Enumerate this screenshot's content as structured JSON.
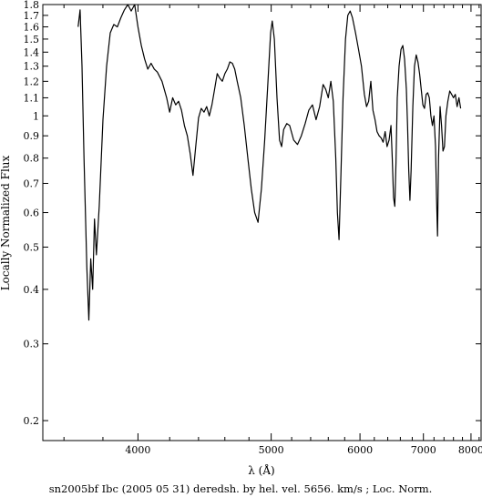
{
  "chart_data": {
    "type": "line",
    "caption": "sn2005bf Ibc (2005 05 31) deredsh. by hel. vel.  5656. km/s ;  Loc. Norm.",
    "xlabel": "λ (Å)",
    "ylabel": "Locally Normalized Flux",
    "x_scale": "reciprocal",
    "y_scale": "log",
    "xlim": [
      3500,
      8250
    ],
    "ylim": [
      0.18,
      1.8
    ],
    "x_ticks": [
      4000,
      5000,
      6000,
      7000,
      8000
    ],
    "x_tick_labels": [
      "4000",
      "5000",
      "6000",
      "7000",
      "8000"
    ],
    "y_ticks": [
      0.2,
      0.3,
      0.4,
      0.5,
      0.6,
      0.7,
      0.8,
      0.9,
      1,
      1.1,
      1.2,
      1.3,
      1.4,
      1.5,
      1.6,
      1.7,
      1.8
    ],
    "y_tick_labels": [
      "0.2",
      "0.3",
      "0.4",
      "0.5",
      "0.6",
      "0.7",
      "0.8",
      "0.9",
      "1",
      "1.1",
      "1.2",
      "1.3",
      "1.4",
      "1.5",
      "1.6",
      "1.7",
      "1.8"
    ],
    "grid": false,
    "series": [
      {
        "color": "#000000",
        "points": [
          [
            3670,
            1.6
          ],
          [
            3680,
            1.75
          ],
          [
            3690,
            1.3
          ],
          [
            3700,
            0.8
          ],
          [
            3715,
            0.45
          ],
          [
            3725,
            0.34
          ],
          [
            3735,
            0.47
          ],
          [
            3745,
            0.4
          ],
          [
            3755,
            0.58
          ],
          [
            3765,
            0.48
          ],
          [
            3780,
            0.62
          ],
          [
            3800,
            0.98
          ],
          [
            3820,
            1.3
          ],
          [
            3840,
            1.55
          ],
          [
            3860,
            1.62
          ],
          [
            3880,
            1.6
          ],
          [
            3900,
            1.68
          ],
          [
            3920,
            1.75
          ],
          [
            3940,
            1.8
          ],
          [
            3960,
            1.74
          ],
          [
            3980,
            1.8
          ],
          [
            4000,
            1.6
          ],
          [
            4020,
            1.45
          ],
          [
            4040,
            1.35
          ],
          [
            4060,
            1.28
          ],
          [
            4080,
            1.32
          ],
          [
            4100,
            1.28
          ],
          [
            4120,
            1.26
          ],
          [
            4150,
            1.2
          ],
          [
            4180,
            1.1
          ],
          [
            4200,
            1.02
          ],
          [
            4220,
            1.1
          ],
          [
            4240,
            1.06
          ],
          [
            4260,
            1.08
          ],
          [
            4280,
            1.03
          ],
          [
            4300,
            0.95
          ],
          [
            4320,
            0.9
          ],
          [
            4340,
            0.82
          ],
          [
            4360,
            0.73
          ],
          [
            4380,
            0.85
          ],
          [
            4400,
            0.99
          ],
          [
            4420,
            1.04
          ],
          [
            4440,
            1.02
          ],
          [
            4460,
            1.05
          ],
          [
            4480,
            1.0
          ],
          [
            4500,
            1.06
          ],
          [
            4520,
            1.15
          ],
          [
            4540,
            1.25
          ],
          [
            4560,
            1.22
          ],
          [
            4580,
            1.2
          ],
          [
            4600,
            1.25
          ],
          [
            4620,
            1.28
          ],
          [
            4640,
            1.33
          ],
          [
            4660,
            1.32
          ],
          [
            4680,
            1.28
          ],
          [
            4700,
            1.2
          ],
          [
            4730,
            1.1
          ],
          [
            4760,
            0.95
          ],
          [
            4790,
            0.8
          ],
          [
            4820,
            0.68
          ],
          [
            4850,
            0.6
          ],
          [
            4880,
            0.57
          ],
          [
            4910,
            0.68
          ],
          [
            4940,
            0.88
          ],
          [
            4970,
            1.2
          ],
          [
            4995,
            1.55
          ],
          [
            5010,
            1.65
          ],
          [
            5030,
            1.5
          ],
          [
            5055,
            1.1
          ],
          [
            5080,
            0.88
          ],
          [
            5100,
            0.85
          ],
          [
            5120,
            0.93
          ],
          [
            5150,
            0.96
          ],
          [
            5180,
            0.95
          ],
          [
            5220,
            0.88
          ],
          [
            5260,
            0.86
          ],
          [
            5300,
            0.9
          ],
          [
            5340,
            0.96
          ],
          [
            5380,
            1.03
          ],
          [
            5420,
            1.06
          ],
          [
            5460,
            0.98
          ],
          [
            5500,
            1.05
          ],
          [
            5540,
            1.18
          ],
          [
            5570,
            1.15
          ],
          [
            5600,
            1.1
          ],
          [
            5630,
            1.2
          ],
          [
            5660,
            1.08
          ],
          [
            5690,
            0.8
          ],
          [
            5710,
            0.6
          ],
          [
            5730,
            0.52
          ],
          [
            5750,
            0.7
          ],
          [
            5780,
            1.1
          ],
          [
            5810,
            1.5
          ],
          [
            5840,
            1.7
          ],
          [
            5870,
            1.74
          ],
          [
            5900,
            1.68
          ],
          [
            5940,
            1.55
          ],
          [
            5980,
            1.42
          ],
          [
            6020,
            1.3
          ],
          [
            6060,
            1.12
          ],
          [
            6090,
            1.05
          ],
          [
            6120,
            1.08
          ],
          [
            6150,
            1.2
          ],
          [
            6180,
            1.03
          ],
          [
            6210,
            0.98
          ],
          [
            6240,
            0.92
          ],
          [
            6270,
            0.9
          ],
          [
            6300,
            0.89
          ],
          [
            6330,
            0.87
          ],
          [
            6360,
            0.92
          ],
          [
            6390,
            0.85
          ],
          [
            6420,
            0.88
          ],
          [
            6450,
            0.95
          ],
          [
            6470,
            0.8
          ],
          [
            6490,
            0.65
          ],
          [
            6510,
            0.62
          ],
          [
            6530,
            0.78
          ],
          [
            6550,
            1.1
          ],
          [
            6580,
            1.3
          ],
          [
            6610,
            1.42
          ],
          [
            6640,
            1.45
          ],
          [
            6670,
            1.35
          ],
          [
            6700,
            1.15
          ],
          [
            6720,
            0.95
          ],
          [
            6740,
            0.75
          ],
          [
            6760,
            0.64
          ],
          [
            6780,
            0.75
          ],
          [
            6810,
            1.05
          ],
          [
            6840,
            1.3
          ],
          [
            6870,
            1.38
          ],
          [
            6900,
            1.33
          ],
          [
            6930,
            1.25
          ],
          [
            6960,
            1.15
          ],
          [
            6990,
            1.06
          ],
          [
            7020,
            1.04
          ],
          [
            7050,
            1.12
          ],
          [
            7080,
            1.13
          ],
          [
            7110,
            1.1
          ],
          [
            7140,
            1.0
          ],
          [
            7170,
            0.95
          ],
          [
            7200,
            1.0
          ],
          [
            7230,
            0.85
          ],
          [
            7250,
            0.65
          ],
          [
            7270,
            0.53
          ],
          [
            7290,
            0.8
          ],
          [
            7320,
            1.05
          ],
          [
            7350,
            0.95
          ],
          [
            7380,
            0.83
          ],
          [
            7410,
            0.85
          ],
          [
            7440,
            1.0
          ],
          [
            7480,
            1.08
          ],
          [
            7520,
            1.14
          ],
          [
            7560,
            1.12
          ],
          [
            7600,
            1.1
          ],
          [
            7640,
            1.12
          ],
          [
            7680,
            1.05
          ],
          [
            7720,
            1.1
          ],
          [
            7760,
            1.04
          ]
        ]
      }
    ]
  }
}
